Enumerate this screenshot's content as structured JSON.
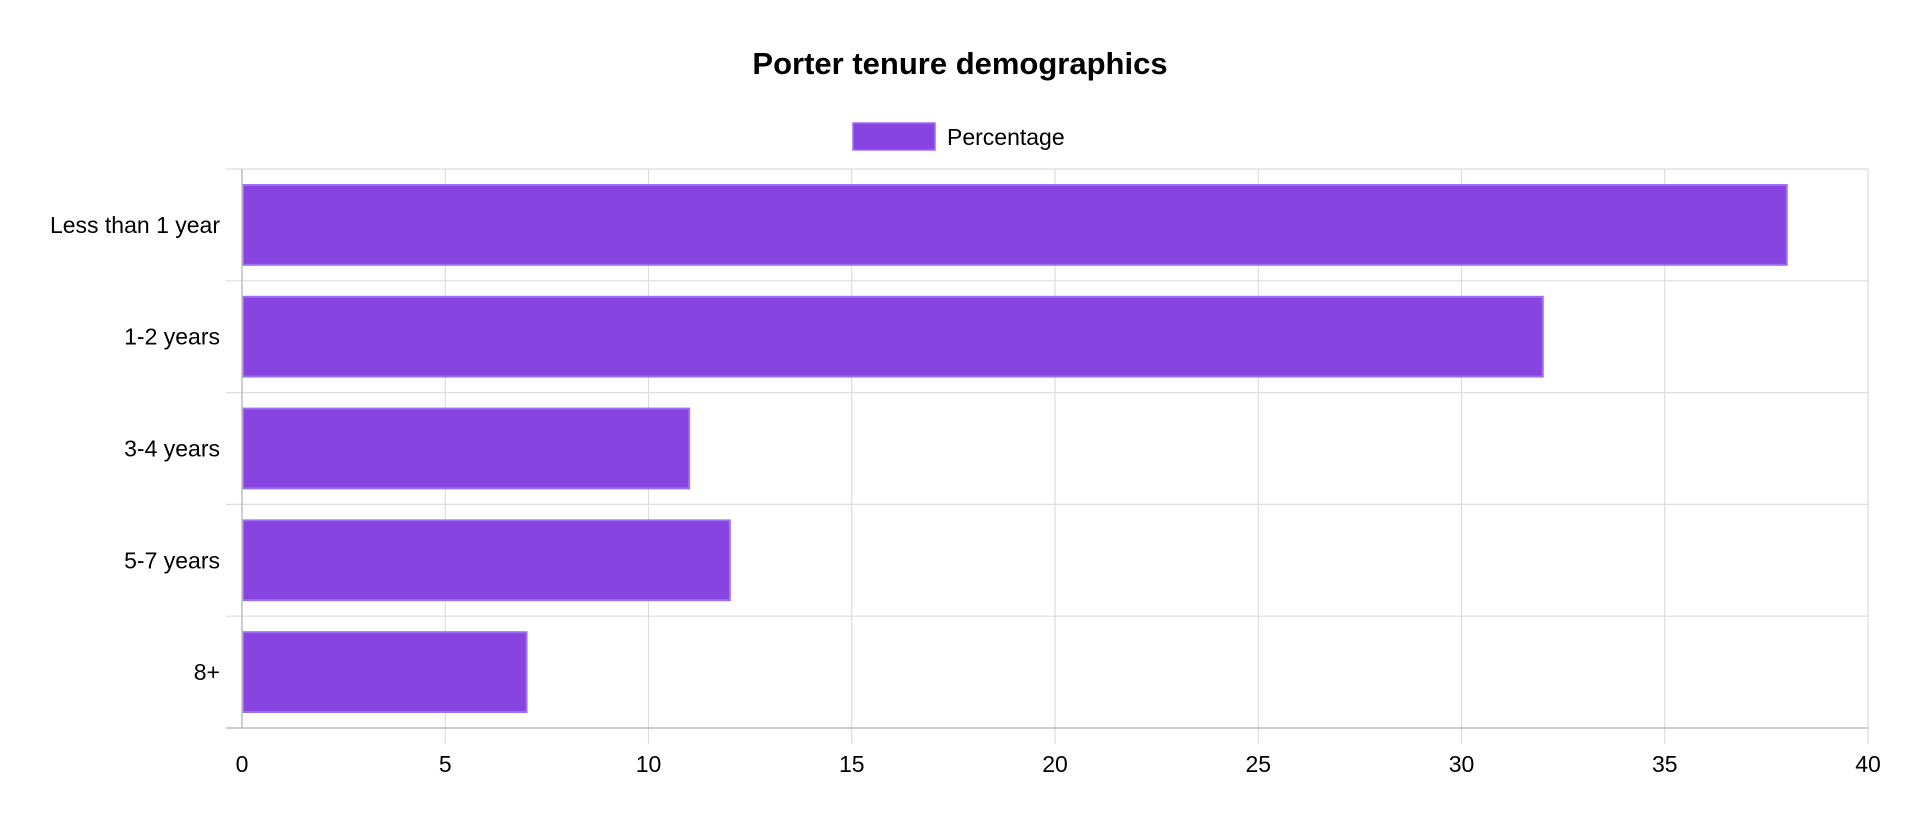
{
  "chart_data": {
    "type": "bar",
    "orientation": "horizontal",
    "title": "Porter tenure demographics",
    "xlabel": "",
    "ylabel": "",
    "categories": [
      "Less than 1 year",
      "1-2 years",
      "3-4 years",
      "5-7 years",
      "8+"
    ],
    "series": [
      {
        "name": "Percentage",
        "values": [
          38,
          32,
          11,
          12,
          7
        ],
        "color": "#8844e0",
        "border_color": "#a16df0"
      }
    ],
    "xlim": [
      0,
      40
    ],
    "x_ticks": [
      "0",
      "5",
      "10",
      "15",
      "20",
      "25",
      "30",
      "35",
      "40"
    ],
    "grid": true,
    "legend_position": "top-center"
  }
}
